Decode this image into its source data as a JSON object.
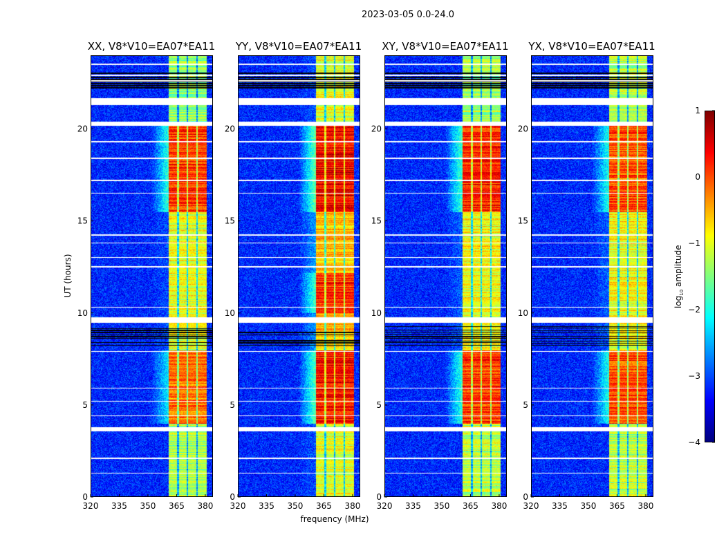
{
  "chart_data": {
    "type": "heatmap",
    "title": "2023-03-05 0.0-24.0",
    "xlabel": "frequency (MHz)",
    "ylabel": "UT (hours)",
    "xlim": [
      320,
      384
    ],
    "ylim": [
      0,
      24
    ],
    "xticks": [
      320,
      335,
      350,
      365,
      380
    ],
    "yticks": [
      0,
      5,
      10,
      15,
      20
    ],
    "colorbar": {
      "label": "log10 amplitude",
      "label_main": "log",
      "label_sub": "10",
      "label_rest": " amplitude",
      "range": [
        -4,
        1
      ],
      "ticks": [
        "1",
        "0",
        "−1",
        "−2",
        "−3",
        "−4"
      ],
      "tick_values": [
        1,
        0,
        -1,
        -2,
        -3,
        -4
      ],
      "colormap": "jet"
    },
    "band_mhz": [
      360.5,
      380.5
    ],
    "band_gaps_mhz": [
      365.5,
      370.5,
      375.5
    ],
    "background_log_amp": -3.2,
    "flag_black_hours": [
      [
        22.2,
        23.1
      ],
      [
        8.2,
        9.3
      ]
    ],
    "flag_white_hours": [
      [
        21.3,
        21.7
      ],
      [
        20.2,
        20.4
      ],
      [
        9.5,
        9.8
      ],
      [
        3.6,
        3.8
      ],
      [
        22.9,
        22.95
      ],
      [
        22.6,
        22.65
      ],
      [
        19.3,
        19.35
      ],
      [
        18.4,
        18.45
      ],
      [
        17.2,
        17.25
      ],
      [
        16.5,
        16.55
      ],
      [
        14.2,
        14.3
      ],
      [
        13.8,
        13.85
      ],
      [
        13.0,
        13.05
      ],
      [
        12.5,
        12.55
      ],
      [
        10.3,
        10.35
      ],
      [
        7.9,
        7.95
      ],
      [
        5.9,
        5.95
      ],
      [
        5.2,
        5.25
      ],
      [
        4.4,
        4.45
      ],
      [
        2.1,
        2.15
      ],
      [
        1.3,
        1.35
      ],
      [
        23.5,
        23.55
      ]
    ],
    "panels": [
      {
        "name": "XX",
        "title": "XX, V8*V10=EA07*EA11",
        "segments": [
          [
            0,
            4,
            -1.3
          ],
          [
            4,
            8,
            -0.2
          ],
          [
            8,
            15.5,
            -1.0
          ],
          [
            15.5,
            20.2,
            0.1
          ],
          [
            20.4,
            24,
            -1.4
          ]
        ]
      },
      {
        "name": "YY",
        "title": "YY, V8*V10=EA07*EA11",
        "segments": [
          [
            0,
            4,
            -1.0
          ],
          [
            4,
            8,
            0.3
          ],
          [
            8,
            10,
            -0.6
          ],
          [
            10,
            12.2,
            0.2
          ],
          [
            12.2,
            15.5,
            -0.6
          ],
          [
            15.5,
            20.2,
            0.4
          ],
          [
            20.4,
            24,
            -1.0
          ]
        ]
      },
      {
        "name": "XY",
        "title": "XY, V8*V10=EA07*EA11",
        "segments": [
          [
            0,
            4,
            -1.2
          ],
          [
            4,
            8,
            0.1
          ],
          [
            8,
            15.5,
            -0.9
          ],
          [
            15.5,
            20.2,
            0.2
          ],
          [
            20.4,
            24,
            -1.3
          ]
        ]
      },
      {
        "name": "YX",
        "title": "YX, V8*V10=EA07*EA11",
        "segments": [
          [
            0,
            4,
            -1.2
          ],
          [
            4,
            8,
            0.0
          ],
          [
            8,
            15.5,
            -0.9
          ],
          [
            15.5,
            20.2,
            0.0
          ],
          [
            20.4,
            24,
            -1.3
          ]
        ]
      }
    ]
  }
}
